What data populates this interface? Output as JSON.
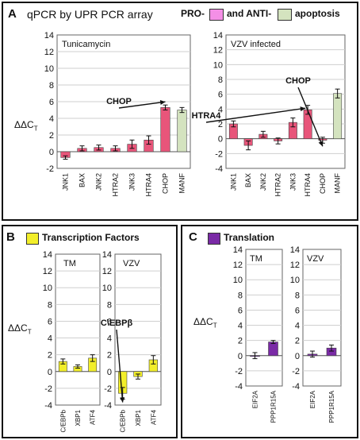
{
  "panel_a": {
    "letter": "A",
    "title": "qPCR by UPR PCR array",
    "legend_pro": "PRO-",
    "legend_and_anti": "and ANTI-",
    "legend_apoptosis": "apoptosis",
    "ylabel": "ΔΔC",
    "ylabel_sub": "T"
  },
  "panel_b": {
    "letter": "B",
    "legend": "Transcription Factors",
    "ylabel": "ΔΔC",
    "ylabel_sub": "T"
  },
  "panel_c": {
    "letter": "C",
    "legend": "Translation",
    "ylabel": "ΔΔC",
    "ylabel_sub": "T"
  },
  "colors": {
    "pro": "#e8557a",
    "pro_legend": "#f48fe6",
    "anti": "#d4e3bf",
    "tf": "#f2ee2a",
    "translation": "#7a2aa6",
    "border": "#111111",
    "grid": "#cfcfcf"
  },
  "chart_data": [
    {
      "id": "tunicamycin",
      "type": "bar",
      "title": "Tunicamycin",
      "ylim": [
        -2,
        14
      ],
      "yticks": [
        -2,
        0,
        2,
        4,
        6,
        8,
        10,
        12,
        14
      ],
      "grid": true,
      "categories": [
        "JNK1",
        "BAX",
        "JNK2",
        "HTRA2",
        "JNK3",
        "HTRA4",
        "CHOP",
        "MANF"
      ],
      "values": [
        -0.7,
        0.4,
        0.5,
        0.4,
        0.9,
        1.4,
        5.3,
        5.0
      ],
      "errors": [
        0.2,
        0.3,
        0.3,
        0.3,
        0.5,
        0.5,
        0.3,
        0.3
      ],
      "groups": [
        "pro",
        "pro",
        "pro",
        "pro",
        "pro",
        "pro",
        "pro",
        "anti"
      ],
      "annotations": [
        {
          "text": "CHOP",
          "target": "CHOP"
        }
      ]
    },
    {
      "id": "vzv_upr",
      "type": "bar",
      "title": "VZV infected",
      "ylim": [
        -4,
        14
      ],
      "yticks": [
        -4,
        -2,
        0,
        2,
        4,
        6,
        8,
        10,
        12,
        14
      ],
      "grid": true,
      "categories": [
        "JNK1",
        "BAX",
        "JNK2",
        "HTRA2",
        "JNK3",
        "HTRA4",
        "CHOP",
        "MANF"
      ],
      "values": [
        2.0,
        -0.9,
        0.6,
        -0.3,
        2.2,
        3.9,
        -0.2,
        6.1
      ],
      "errors": [
        0.4,
        0.6,
        0.4,
        0.4,
        0.6,
        0.6,
        0.4,
        0.6
      ],
      "groups": [
        "pro",
        "pro",
        "pro",
        "pro",
        "pro",
        "pro",
        "pro",
        "anti"
      ],
      "annotations": [
        {
          "text": "HTRA4",
          "target": "HTRA4"
        },
        {
          "text": "CHOP",
          "target": "CHOP"
        }
      ]
    },
    {
      "id": "tm_tf",
      "type": "bar",
      "title": "TM",
      "ylim": [
        -4,
        14
      ],
      "yticks": [
        -4,
        -2,
        0,
        2,
        4,
        6,
        8,
        10,
        12,
        14
      ],
      "grid": true,
      "categories": [
        "C/EBPb",
        "XBP1",
        "ATF4"
      ],
      "values": [
        1.2,
        0.6,
        1.6
      ],
      "errors": [
        0.3,
        0.2,
        0.4
      ],
      "groups": [
        "tf",
        "tf",
        "tf"
      ],
      "annotations": []
    },
    {
      "id": "vzv_tf",
      "type": "bar",
      "title": "VZV",
      "ylim": [
        -4,
        14
      ],
      "yticks": [
        -4,
        -2,
        0,
        2,
        4,
        6,
        8,
        10,
        12,
        14
      ],
      "grid": true,
      "categories": [
        "C/EBPb",
        "XBP1",
        "ATF4"
      ],
      "values": [
        -2.6,
        -0.6,
        1.4
      ],
      "errors": [
        0.7,
        0.3,
        0.5
      ],
      "groups": [
        "tf",
        "tf",
        "tf"
      ],
      "annotations": [
        {
          "text": "C\\EBPβ",
          "target": "C/EBPb"
        }
      ]
    },
    {
      "id": "tm_tl",
      "type": "bar",
      "title": "TM",
      "ylim": [
        -4,
        14
      ],
      "yticks": [
        -4,
        -2,
        0,
        2,
        4,
        6,
        8,
        10,
        12,
        14
      ],
      "grid": true,
      "categories": [
        "EIF2A",
        "PPP1R15A"
      ],
      "values": [
        0.0,
        1.8
      ],
      "errors": [
        0.4,
        0.2
      ],
      "groups": [
        "tl",
        "tl"
      ],
      "annotations": []
    },
    {
      "id": "vzv_tl",
      "type": "bar",
      "title": "VZV",
      "ylim": [
        -4,
        14
      ],
      "yticks": [
        -4,
        -2,
        0,
        2,
        4,
        6,
        8,
        10,
        12,
        14
      ],
      "grid": true,
      "categories": [
        "EIF2A",
        "PPP1R15A"
      ],
      "values": [
        0.2,
        1.0
      ],
      "errors": [
        0.4,
        0.4
      ],
      "groups": [
        "tl",
        "tl"
      ],
      "annotations": []
    }
  ]
}
